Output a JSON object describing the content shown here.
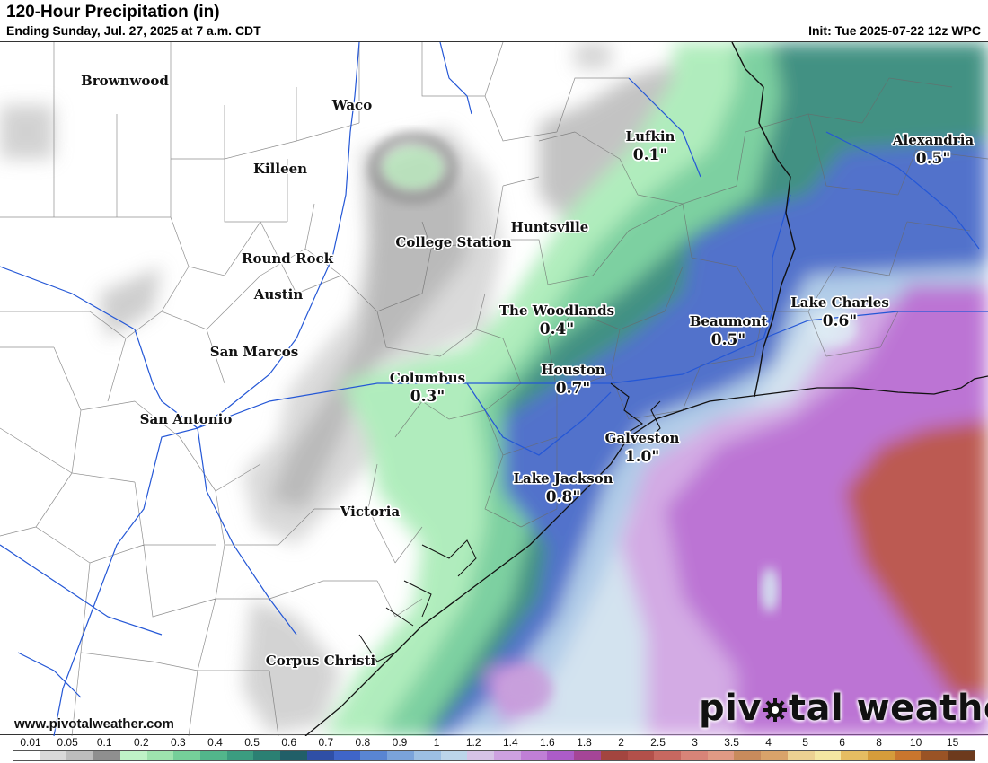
{
  "header": {
    "title": "120-Hour Precipitation (in)",
    "subtitle": "Ending Sunday, Jul. 27, 2025 at 7 a.m. CDT",
    "init": "Init: Tue 2025-07-22 12z WPC"
  },
  "cities": [
    {
      "name": "Brownwood",
      "value": ""
    },
    {
      "name": "Waco",
      "value": ""
    },
    {
      "name": "Killeen",
      "value": ""
    },
    {
      "name": "Lufkin",
      "value": "0.1\""
    },
    {
      "name": "Alexandria",
      "value": "0.5\""
    },
    {
      "name": "College Station",
      "value": ""
    },
    {
      "name": "Huntsville",
      "value": ""
    },
    {
      "name": "Round Rock",
      "value": ""
    },
    {
      "name": "Austin",
      "value": ""
    },
    {
      "name": "The Woodlands",
      "value": "0.4\""
    },
    {
      "name": "Beaumont",
      "value": "0.5\""
    },
    {
      "name": "Lake Charles",
      "value": "0.6\""
    },
    {
      "name": "San Marcos",
      "value": ""
    },
    {
      "name": "Columbus",
      "value": "0.3\""
    },
    {
      "name": "Houston",
      "value": "0.7\""
    },
    {
      "name": "San Antonio",
      "value": ""
    },
    {
      "name": "Galveston",
      "value": "1.0\""
    },
    {
      "name": "Lake Jackson",
      "value": "0.8\""
    },
    {
      "name": "Victoria",
      "value": ""
    },
    {
      "name": "Corpus Christi",
      "value": ""
    }
  ],
  "legend": {
    "labels": [
      "0.01",
      "0.05",
      "0.1",
      "0.2",
      "0.3",
      "0.4",
      "0.5",
      "0.6",
      "0.7",
      "0.8",
      "0.9",
      "1",
      "1.2",
      "1.4",
      "1.6",
      "1.8",
      "2",
      "2.5",
      "3",
      "3.5",
      "4",
      "5",
      "6",
      "8",
      "10",
      "15"
    ],
    "colors": [
      "#ffffff",
      "#d9d9d9",
      "#bdbdbd",
      "#8f8f8f",
      "#bff3c7",
      "#9ee3ae",
      "#75cf99",
      "#52b68b",
      "#3b9c80",
      "#2b8073",
      "#215f68",
      "#2f4fa6",
      "#3f65c8",
      "#5985d2",
      "#7aa3da",
      "#9cbfe3",
      "#bcd5ea",
      "#d6c3e6",
      "#cda1e0",
      "#c07fd6",
      "#ac5cc8",
      "#a54597",
      "#a3453f",
      "#b3504a",
      "#c76860",
      "#d88478",
      "#e09a84",
      "#c88b5c",
      "#d9a36a",
      "#ecd192",
      "#f4e7a2",
      "#e5bd62",
      "#d59c3b",
      "#c9762e",
      "#9a5325",
      "#6d3a1d"
    ]
  },
  "footer": {
    "website": "www.pivotalweather.com",
    "brand_left": "piv",
    "brand_right": "tal weather"
  },
  "colors": {
    "gray_light": "#dcdcdc",
    "gray_mid": "#b9b9b9",
    "gray_dark": "#8e8e8e",
    "green_light": "#a6eab3",
    "green_mid": "#62c291",
    "green_dark": "#2e7e74",
    "teal_dark": "#21646c",
    "blue": "#3d63c6",
    "blue_light": "#a8c7e6",
    "blue_pale": "#cfe2ef",
    "purple_light": "#cd9fe2",
    "purple": "#b266d1",
    "red": "#b3463f",
    "boundary": "#6a6a6a",
    "river": "#2457d6",
    "coast": "#111111"
  }
}
